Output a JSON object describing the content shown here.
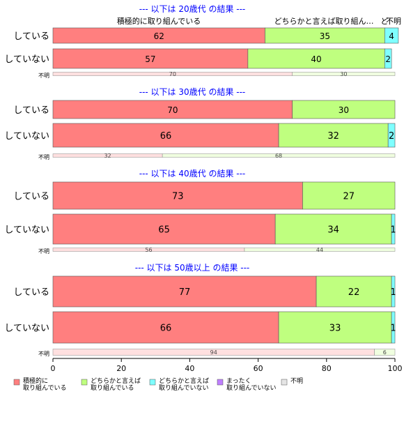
{
  "colors": {
    "positive": "#FF7F7F",
    "somewhat_positive": "#BFFF7F",
    "somewhat_negative": "#7FFFFF",
    "negative": "#BF7FFF",
    "unknown": "#E5E5E5",
    "title": "#0000FF"
  },
  "header_labels": {
    "positive": "積極的に取り組んでいる",
    "somewhat_positive": "どちらかと言えば取り組ん…",
    "somewhat_negative": "ど",
    "unknown": "不明"
  },
  "legend": [
    {
      "key": "positive",
      "line1": "積極的に",
      "line2": "取り組んでいる"
    },
    {
      "key": "somewhat_positive",
      "line1": "どちらかと言えば",
      "line2": "取り組んでいる"
    },
    {
      "key": "somewhat_negative",
      "line1": "どちらかと言えば",
      "line2": "取り組んでいない"
    },
    {
      "key": "negative",
      "line1": "まったく",
      "line2": "取り組んでいない"
    },
    {
      "key": "unknown",
      "line1": "不明",
      "line2": ""
    }
  ],
  "chart_data": {
    "type": "bar",
    "orientation": "horizontal",
    "stacked": true,
    "xlim": [
      0,
      100
    ],
    "xticks": [
      0,
      20,
      40,
      60,
      80,
      100
    ],
    "categories": [
      "している",
      "していない"
    ],
    "unknown_row_label": "不明",
    "panels": [
      {
        "title": "--- 以下は 20歳代 の結果 ---",
        "rows": [
          {
            "label": "している",
            "values": [
              62,
              35,
              4,
              0
            ]
          },
          {
            "label": "していない",
            "values": [
              57,
              40,
              2,
              0
            ]
          }
        ],
        "unknown_split": [
          70,
          30
        ]
      },
      {
        "title": "--- 以下は 30歳代 の結果 ---",
        "rows": [
          {
            "label": "している",
            "values": [
              70,
              30,
              0,
              0
            ]
          },
          {
            "label": "していない",
            "values": [
              66,
              32,
              2,
              0
            ]
          }
        ],
        "unknown_split": [
          32,
          68
        ]
      },
      {
        "title": "--- 以下は 40歳代 の結果 ---",
        "rows": [
          {
            "label": "している",
            "values": [
              73,
              27,
              0,
              0
            ]
          },
          {
            "label": "していない",
            "values": [
              65,
              34,
              1,
              0
            ]
          }
        ],
        "unknown_split": [
          56,
          44
        ]
      },
      {
        "title": "--- 以下は 50歳以上 の結果 ---",
        "rows": [
          {
            "label": "している",
            "values": [
              77,
              22,
              1,
              0
            ]
          },
          {
            "label": "していない",
            "values": [
              66,
              33,
              1,
              0
            ]
          }
        ],
        "unknown_split": [
          94,
          6
        ]
      }
    ]
  }
}
